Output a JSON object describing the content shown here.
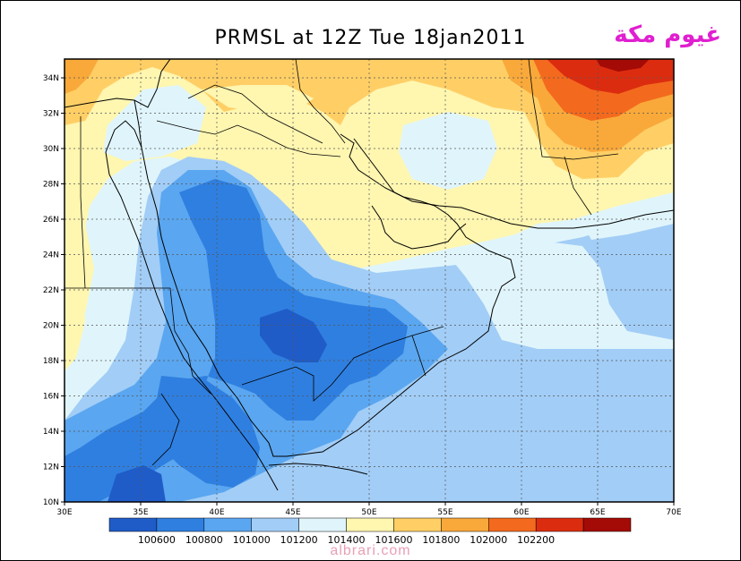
{
  "title": "PRMSL at 12Z Tue 18jan2011",
  "brand_text": "غيوم مكة",
  "footer": "albrari.com",
  "lat_labels": [
    "34N",
    "32N",
    "30N",
    "28N",
    "26N",
    "24N",
    "22N",
    "20N",
    "18N",
    "16N",
    "14N",
    "12N",
    "10N"
  ],
  "lon_labels": [
    "30E",
    "35E",
    "40E",
    "45E",
    "50E",
    "55E",
    "60E",
    "65E",
    "70E"
  ],
  "colorbar": {
    "colors": [
      "#1f5cc8",
      "#2f7fe0",
      "#5aa6f0",
      "#a2cdf6",
      "#e0f5fb",
      "#fff6b0",
      "#ffcf66",
      "#f9a93a",
      "#f36a1e",
      "#dc2c10",
      "#a40a06"
    ],
    "labels": [
      "100600",
      "100800",
      "101000",
      "101200",
      "101400",
      "101600",
      "101800",
      "102000",
      "102200"
    ]
  }
}
